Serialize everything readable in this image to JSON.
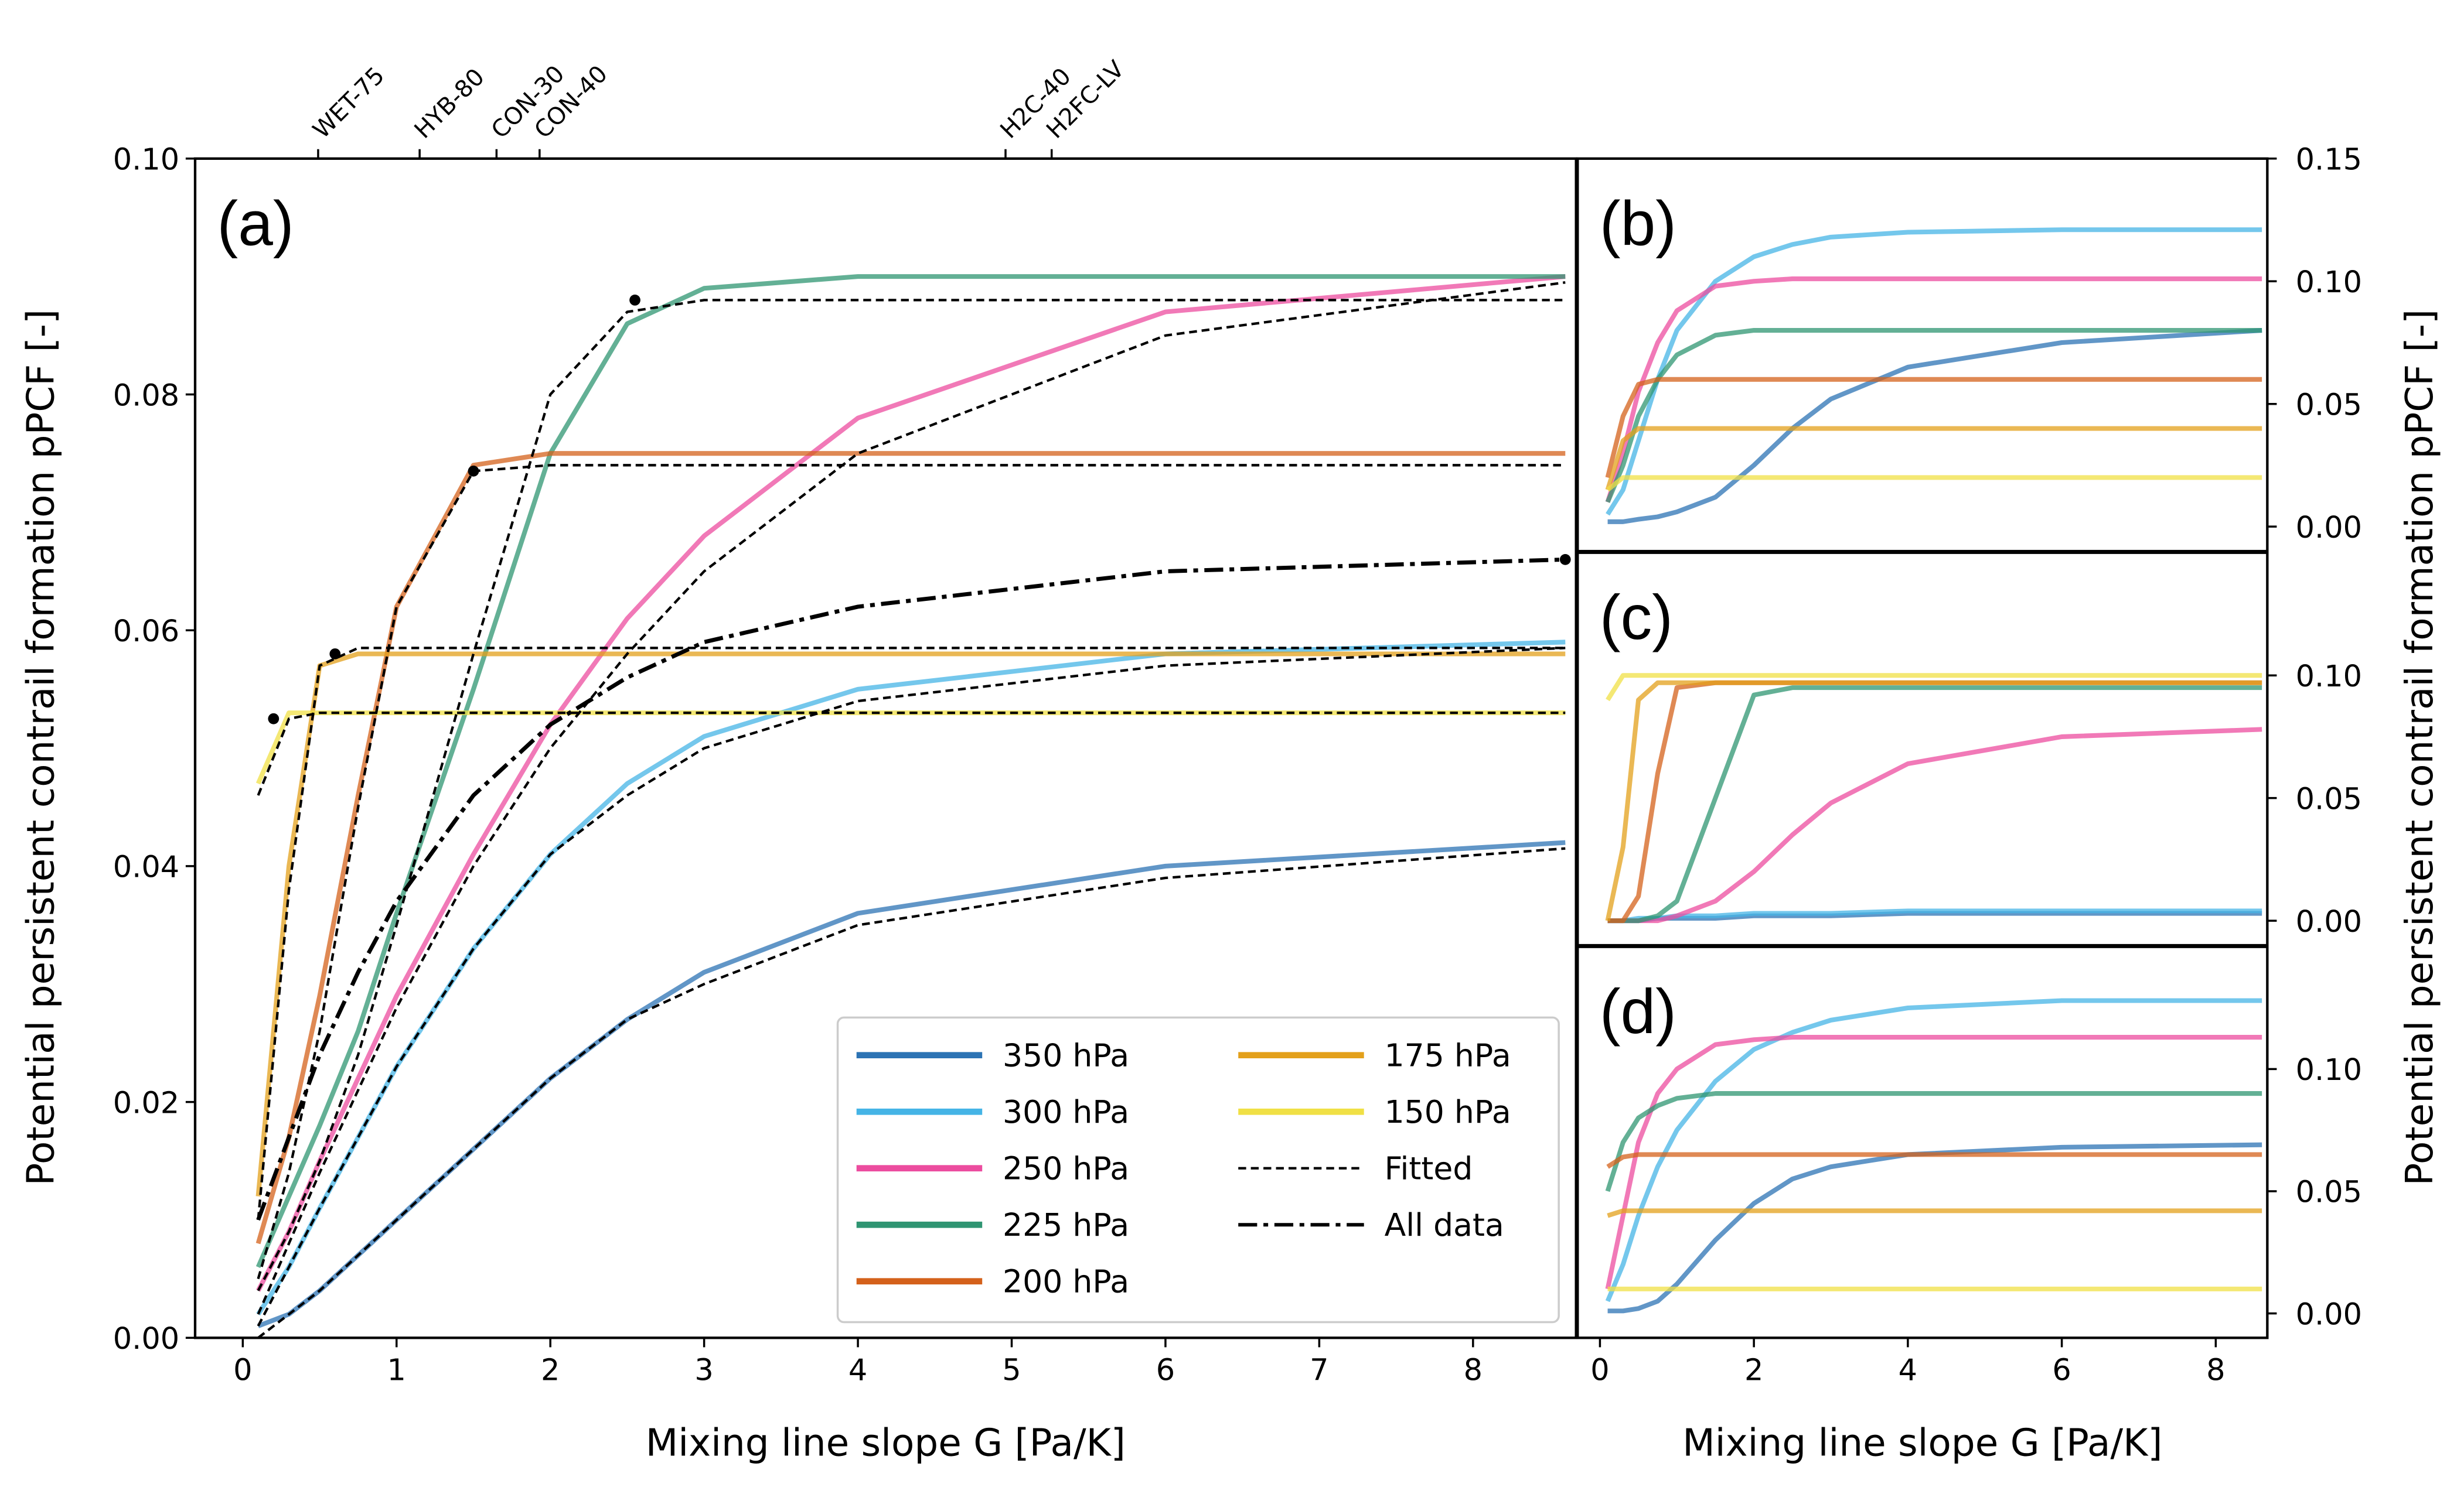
{
  "chart_data": [
    {
      "type": "line",
      "panel_label": "(a)",
      "x_label": "Mixing line slope G [Pa/K]",
      "y_label": "Potential persistent contrail formation pPCF [-]",
      "yaxis_side": "left",
      "x": [
        0.1,
        0.3,
        0.5,
        0.75,
        1,
        1.5,
        2,
        2.5,
        3,
        4,
        6,
        8.6
      ],
      "xlim": [
        -0.31,
        8.67
      ],
      "ylim": [
        0,
        0.1
      ],
      "xticks": [
        0,
        1,
        2,
        3,
        4,
        5,
        6,
        7,
        8
      ],
      "yticks": [
        {
          "value": 0,
          "label": "0.00"
        },
        {
          "value": 0.02,
          "label": "0.02"
        },
        {
          "value": 0.04,
          "label": "0.04"
        },
        {
          "value": 0.06,
          "label": "0.06"
        },
        {
          "value": 0.08,
          "label": "0.08"
        },
        {
          "value": 0.1,
          "label": "0.10"
        }
      ],
      "x2ticks": [
        {
          "value": 0.49,
          "label": "WET-75"
        },
        {
          "value": 1.15,
          "label": "HYB-80"
        },
        {
          "value": 1.65,
          "label": "CON-30"
        },
        {
          "value": 1.93,
          "label": "CON-40"
        },
        {
          "value": 4.96,
          "label": "H2C-40"
        },
        {
          "value": 5.26,
          "label": "H2FC-LV"
        }
      ],
      "series": [
        {
          "name": "350 hPa",
          "color": "#2c73b4",
          "values": [
            0.001,
            0.002,
            0.004,
            0.007,
            0.01,
            0.016,
            0.022,
            0.027,
            0.031,
            0.036,
            0.04,
            0.042
          ]
        },
        {
          "name": "300 hPa",
          "color": "#45b4e6",
          "values": [
            0.002,
            0.006,
            0.011,
            0.017,
            0.023,
            0.033,
            0.041,
            0.047,
            0.051,
            0.055,
            0.058,
            0.059
          ]
        },
        {
          "name": "250 hPa",
          "color": "#ec4c9f",
          "values": [
            0.004,
            0.009,
            0.015,
            0.022,
            0.029,
            0.041,
            0.052,
            0.061,
            0.068,
            0.078,
            0.087,
            0.09
          ]
        },
        {
          "name": "225 hPa",
          "color": "#2f9572",
          "values": [
            0.006,
            0.012,
            0.018,
            0.026,
            0.036,
            0.055,
            0.075,
            0.086,
            0.089,
            0.09,
            0.09,
            0.09
          ]
        },
        {
          "name": "200 hPa",
          "color": "#d4611b",
          "values": [
            0.008,
            0.017,
            0.029,
            0.046,
            0.062,
            0.074,
            0.075,
            0.075,
            0.075,
            0.075,
            0.075,
            0.075
          ]
        },
        {
          "name": "175 hPa",
          "color": "#e3a01b",
          "values": [
            0.012,
            0.04,
            0.057,
            0.058,
            0.058,
            0.058,
            0.058,
            0.058,
            0.058,
            0.058,
            0.058,
            0.058
          ]
        },
        {
          "name": "150 hPa",
          "color": "#f0e045",
          "values": [
            0.047,
            0.053,
            0.053,
            0.053,
            0.053,
            0.053,
            0.053,
            0.053,
            0.053,
            0.053,
            0.053,
            0.053
          ]
        }
      ],
      "fitted": {
        "name": "Fitted",
        "color": "#000000",
        "curves": [
          [
            0.0,
            0.002,
            0.004,
            0.007,
            0.01,
            0.016,
            0.022,
            0.027,
            0.03,
            0.035,
            0.039,
            0.0415
          ],
          [
            0.001,
            0.006,
            0.011,
            0.017,
            0.023,
            0.033,
            0.041,
            0.046,
            0.05,
            0.054,
            0.057,
            0.0585
          ],
          [
            0.002,
            0.008,
            0.014,
            0.021,
            0.028,
            0.04,
            0.05,
            0.058,
            0.065,
            0.075,
            0.085,
            0.0895
          ],
          [
            0.004,
            0.009,
            0.015,
            0.024,
            0.035,
            0.058,
            0.08,
            0.087,
            0.088,
            0.088,
            0.088,
            0.088
          ],
          [
            0.005,
            0.014,
            0.026,
            0.045,
            0.062,
            0.0735,
            0.074,
            0.074,
            0.074,
            0.074,
            0.074,
            0.074
          ],
          [
            0.01,
            0.038,
            0.057,
            0.0585,
            0.0585,
            0.0585,
            0.0585,
            0.0585,
            0.0585,
            0.0585,
            0.0585,
            0.0585
          ],
          [
            0.046,
            0.0525,
            0.053,
            0.053,
            0.053,
            0.053,
            0.053,
            0.053,
            0.053,
            0.053,
            0.053,
            0.053
          ]
        ],
        "markers": [
          {
            "x": 0.2,
            "y": 0.0525
          },
          {
            "x": 0.6,
            "y": 0.058
          },
          {
            "x": 1.5,
            "y": 0.0735
          },
          {
            "x": 2.55,
            "y": 0.088
          }
        ]
      },
      "all_data": {
        "name": "All data",
        "color": "#000000",
        "values": [
          0.01,
          0.017,
          0.024,
          0.031,
          0.037,
          0.046,
          0.052,
          0.056,
          0.059,
          0.062,
          0.065,
          0.066
        ],
        "marker": {
          "x": 8.6,
          "y": 0.066
        }
      },
      "legend": "lower right"
    },
    {
      "type": "line",
      "panel_label": "(b)",
      "y_label": "Potential persistent contrail formation pPCF [-]",
      "yaxis_side": "right",
      "x": [
        0.1,
        0.3,
        0.5,
        0.75,
        1,
        1.5,
        2,
        2.5,
        3,
        4,
        6,
        8.6
      ],
      "xlim": [
        -0.29,
        8.67
      ],
      "ylim": [
        -0.01,
        0.15
      ],
      "yticks": [
        {
          "value": 0,
          "label": "0.00"
        },
        {
          "value": 0.05,
          "label": "0.05"
        },
        {
          "value": 0.1,
          "label": "0.10"
        },
        {
          "value": 0.15,
          "label": "0.15"
        }
      ],
      "series": [
        {
          "name": "350 hPa",
          "color": "#2c73b4",
          "values": [
            0.002,
            0.002,
            0.003,
            0.004,
            0.006,
            0.012,
            0.025,
            0.04,
            0.052,
            0.065,
            0.075,
            0.08
          ]
        },
        {
          "name": "300 hPa",
          "color": "#45b4e6",
          "values": [
            0.005,
            0.015,
            0.035,
            0.06,
            0.08,
            0.1,
            0.11,
            0.115,
            0.118,
            0.12,
            0.121,
            0.121
          ]
        },
        {
          "name": "250 hPa",
          "color": "#ec4c9f",
          "values": [
            0.01,
            0.03,
            0.055,
            0.075,
            0.088,
            0.098,
            0.1,
            0.101,
            0.101,
            0.101,
            0.101,
            0.101
          ]
        },
        {
          "name": "225 hPa",
          "color": "#2f9572",
          "values": [
            0.01,
            0.025,
            0.045,
            0.06,
            0.07,
            0.078,
            0.08,
            0.08,
            0.08,
            0.08,
            0.08,
            0.08
          ]
        },
        {
          "name": "200 hPa",
          "color": "#d4611b",
          "values": [
            0.02,
            0.045,
            0.058,
            0.06,
            0.06,
            0.06,
            0.06,
            0.06,
            0.06,
            0.06,
            0.06,
            0.06
          ]
        },
        {
          "name": "175 hPa",
          "color": "#e3a01b",
          "values": [
            0.015,
            0.035,
            0.04,
            0.04,
            0.04,
            0.04,
            0.04,
            0.04,
            0.04,
            0.04,
            0.04,
            0.04
          ]
        },
        {
          "name": "150 hPa",
          "color": "#f0e045",
          "values": [
            0.015,
            0.02,
            0.02,
            0.02,
            0.02,
            0.02,
            0.02,
            0.02,
            0.02,
            0.02,
            0.02,
            0.02
          ]
        }
      ]
    },
    {
      "type": "line",
      "panel_label": "(c)",
      "yaxis_side": "right",
      "x": [
        0.1,
        0.3,
        0.5,
        0.75,
        1,
        1.5,
        2,
        2.5,
        3,
        4,
        6,
        8.6
      ],
      "xlim": [
        -0.29,
        8.67
      ],
      "ylim": [
        -0.01,
        0.15
      ],
      "yticks": [
        {
          "value": 0,
          "label": "0.00"
        },
        {
          "value": 0.05,
          "label": "0.05"
        },
        {
          "value": 0.1,
          "label": "0.10"
        }
      ],
      "series": [
        {
          "name": "350 hPa",
          "color": "#2c73b4",
          "values": [
            0.0,
            0.0,
            0.0,
            0.001,
            0.001,
            0.001,
            0.002,
            0.002,
            0.002,
            0.003,
            0.003,
            0.003
          ]
        },
        {
          "name": "300 hPa",
          "color": "#45b4e6",
          "values": [
            0.0,
            0.0,
            0.001,
            0.001,
            0.002,
            0.002,
            0.003,
            0.003,
            0.003,
            0.004,
            0.004,
            0.004
          ]
        },
        {
          "name": "250 hPa",
          "color": "#ec4c9f",
          "values": [
            0.0,
            0.0,
            0.0,
            0.0,
            0.002,
            0.008,
            0.02,
            0.035,
            0.048,
            0.064,
            0.075,
            0.078
          ]
        },
        {
          "name": "225 hPa",
          "color": "#2f9572",
          "values": [
            0.0,
            0.0,
            0.0,
            0.002,
            0.008,
            0.05,
            0.092,
            0.095,
            0.095,
            0.095,
            0.095,
            0.095
          ]
        },
        {
          "name": "200 hPa",
          "color": "#d4611b",
          "values": [
            0.0,
            0.0,
            0.01,
            0.06,
            0.095,
            0.097,
            0.097,
            0.097,
            0.097,
            0.097,
            0.097,
            0.097
          ]
        },
        {
          "name": "175 hPa",
          "color": "#e3a01b",
          "values": [
            0.0,
            0.03,
            0.09,
            0.097,
            0.097,
            0.097,
            0.097,
            0.097,
            0.097,
            0.097,
            0.097,
            0.097
          ]
        },
        {
          "name": "150 hPa",
          "color": "#f0e045",
          "values": [
            0.09,
            0.1,
            0.1,
            0.1,
            0.1,
            0.1,
            0.1,
            0.1,
            0.1,
            0.1,
            0.1,
            0.1
          ]
        }
      ]
    },
    {
      "type": "line",
      "panel_label": "(d)",
      "x_label": "Mixing line slope G [Pa/K]",
      "yaxis_side": "right",
      "x": [
        0.1,
        0.3,
        0.5,
        0.75,
        1,
        1.5,
        2,
        2.5,
        3,
        4,
        6,
        8.6
      ],
      "xlim": [
        -0.29,
        8.67
      ],
      "ylim": [
        -0.01,
        0.15
      ],
      "xticks": [
        0,
        2,
        4,
        6,
        8
      ],
      "yticks": [
        {
          "value": 0,
          "label": "0.00"
        },
        {
          "value": 0.05,
          "label": "0.05"
        },
        {
          "value": 0.1,
          "label": "0.10"
        }
      ],
      "series": [
        {
          "name": "350 hPa",
          "color": "#2c73b4",
          "values": [
            0.001,
            0.001,
            0.002,
            0.005,
            0.012,
            0.03,
            0.045,
            0.055,
            0.06,
            0.065,
            0.068,
            0.069
          ]
        },
        {
          "name": "300 hPa",
          "color": "#45b4e6",
          "values": [
            0.005,
            0.02,
            0.04,
            0.06,
            0.075,
            0.095,
            0.108,
            0.115,
            0.12,
            0.125,
            0.128,
            0.128
          ]
        },
        {
          "name": "250 hPa",
          "color": "#ec4c9f",
          "values": [
            0.01,
            0.04,
            0.07,
            0.09,
            0.1,
            0.11,
            0.112,
            0.113,
            0.113,
            0.113,
            0.113,
            0.113
          ]
        },
        {
          "name": "225 hPa",
          "color": "#2f9572",
          "values": [
            0.05,
            0.07,
            0.08,
            0.085,
            0.088,
            0.09,
            0.09,
            0.09,
            0.09,
            0.09,
            0.09,
            0.09
          ]
        },
        {
          "name": "200 hPa",
          "color": "#d4611b",
          "values": [
            0.06,
            0.064,
            0.065,
            0.065,
            0.065,
            0.065,
            0.065,
            0.065,
            0.065,
            0.065,
            0.065,
            0.065
          ]
        },
        {
          "name": "175 hPa",
          "color": "#e3a01b",
          "values": [
            0.04,
            0.042,
            0.042,
            0.042,
            0.042,
            0.042,
            0.042,
            0.042,
            0.042,
            0.042,
            0.042,
            0.042
          ]
        },
        {
          "name": "150 hPa",
          "color": "#f0e045",
          "values": [
            0.01,
            0.01,
            0.01,
            0.01,
            0.01,
            0.01,
            0.01,
            0.01,
            0.01,
            0.01,
            0.01,
            0.01
          ]
        }
      ]
    }
  ]
}
